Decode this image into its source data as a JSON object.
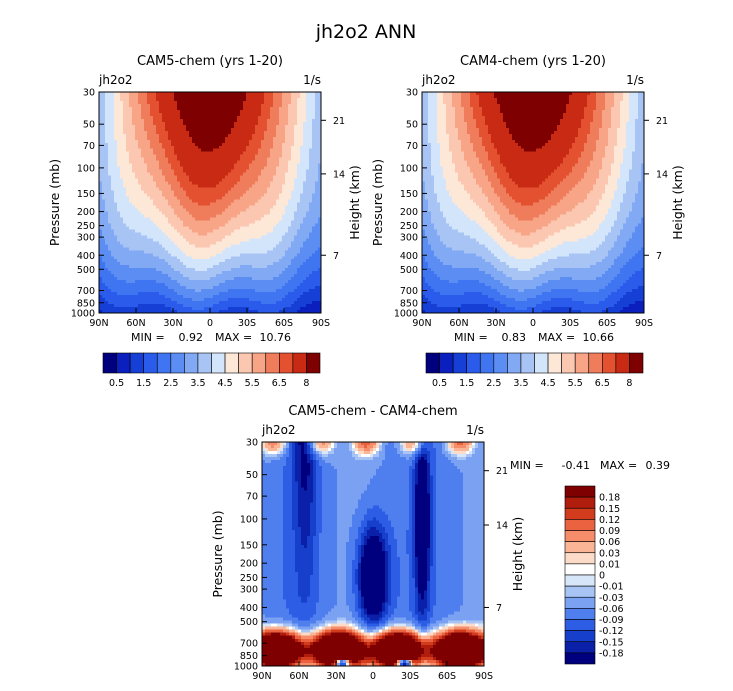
{
  "title": "jh2o2 ANN",
  "chart_data": [
    {
      "type": "heatmap",
      "title": "CAM5-chem (yrs 1-20)",
      "variable": "jh2o2",
      "units": "1/s",
      "xlabel": "",
      "ylabel": "Pressure (mb)",
      "ylabel_right": "Height (km)",
      "x_ticks": [
        "90N",
        "60N",
        "30N",
        "0",
        "30S",
        "60S",
        "90S"
      ],
      "y_ticks": [
        "30",
        "50",
        "70",
        "100",
        "150",
        "200",
        "250",
        "300",
        "400",
        "500",
        "700",
        "850",
        "1000"
      ],
      "height_ticks": [
        "21",
        "14",
        "7"
      ],
      "stats": {
        "min_label": "MIN =",
        "min": "0.92",
        "max_label": "MAX =",
        "max": "10.76"
      },
      "levels": [
        "0.5",
        "1",
        "1.5",
        "2",
        "2.5",
        "3",
        "3.5",
        "4",
        "4.5",
        "5",
        "5.5",
        "6",
        "6.5",
        "7",
        "8"
      ],
      "level_labels": [
        "0.5",
        "1.5",
        "2.5",
        "3.5",
        "4.5",
        "5.5",
        "6.5",
        "8"
      ],
      "colors": [
        "#00007f",
        "#0a1fbe",
        "#163fd6",
        "#2a5bea",
        "#3f75f0",
        "#5b8df2",
        "#82a9f3",
        "#a7c4f5",
        "#d3e5fa",
        "#fde8d8",
        "#fbc7b0",
        "#f7a487",
        "#ef7c5b",
        "#e35131",
        "#c82a14",
        "#7f0000"
      ]
    },
    {
      "type": "heatmap",
      "title": "CAM4-chem (yrs 1-20)",
      "variable": "jh2o2",
      "units": "1/s",
      "xlabel": "",
      "ylabel": "Pressure (mb)",
      "ylabel_right": "Height (km)",
      "x_ticks": [
        "90N",
        "60N",
        "30N",
        "0",
        "30S",
        "60S",
        "90S"
      ],
      "y_ticks": [
        "30",
        "50",
        "70",
        "100",
        "150",
        "200",
        "250",
        "300",
        "400",
        "500",
        "700",
        "850",
        "1000"
      ],
      "height_ticks": [
        "21",
        "14",
        "7"
      ],
      "stats": {
        "min_label": "MIN =",
        "min": "0.83",
        "max_label": "MAX =",
        "max": "10.66"
      },
      "levels": [
        "0.5",
        "1",
        "1.5",
        "2",
        "2.5",
        "3",
        "3.5",
        "4",
        "4.5",
        "5",
        "5.5",
        "6",
        "6.5",
        "7",
        "8"
      ],
      "level_labels": [
        "0.5",
        "1.5",
        "2.5",
        "3.5",
        "4.5",
        "5.5",
        "6.5",
        "8"
      ],
      "colors": [
        "#00007f",
        "#0a1fbe",
        "#163fd6",
        "#2a5bea",
        "#3f75f0",
        "#5b8df2",
        "#82a9f3",
        "#a7c4f5",
        "#d3e5fa",
        "#fde8d8",
        "#fbc7b0",
        "#f7a487",
        "#ef7c5b",
        "#e35131",
        "#c82a14",
        "#7f0000"
      ]
    },
    {
      "type": "heatmap",
      "title": "CAM5-chem - CAM4-chem",
      "variable": "jh2o2",
      "units": "1/s",
      "xlabel": "",
      "ylabel": "Pressure (mb)",
      "ylabel_right": "Height (km)",
      "x_ticks": [
        "90N",
        "60N",
        "30N",
        "0",
        "30S",
        "60S",
        "90S"
      ],
      "y_ticks": [
        "30",
        "50",
        "70",
        "100",
        "150",
        "200",
        "250",
        "300",
        "400",
        "500",
        "700",
        "850",
        "1000"
      ],
      "height_ticks": [
        "21",
        "14",
        "7"
      ],
      "stats": {
        "min_label": "MIN =",
        "min": "-0.41",
        "max_label": "MAX =",
        "max": "0.39"
      },
      "levels": [
        "0.18",
        "0.15",
        "0.12",
        "0.09",
        "0.06",
        "0.03",
        "0.01",
        "0",
        "-0.01",
        "-0.03",
        "-0.06",
        "-0.09",
        "-0.12",
        "-0.15",
        "-0.18"
      ],
      "colors": [
        "#7f0000",
        "#b01d0c",
        "#d33b1d",
        "#ea6240",
        "#f58c6a",
        "#f9b596",
        "#fcdcc8",
        "#ffffff",
        "#d8e6fa",
        "#a7c4f5",
        "#7ba2f2",
        "#4f7fee",
        "#2c5de4",
        "#163fcc",
        "#0a20a8",
        "#00007f"
      ]
    }
  ]
}
